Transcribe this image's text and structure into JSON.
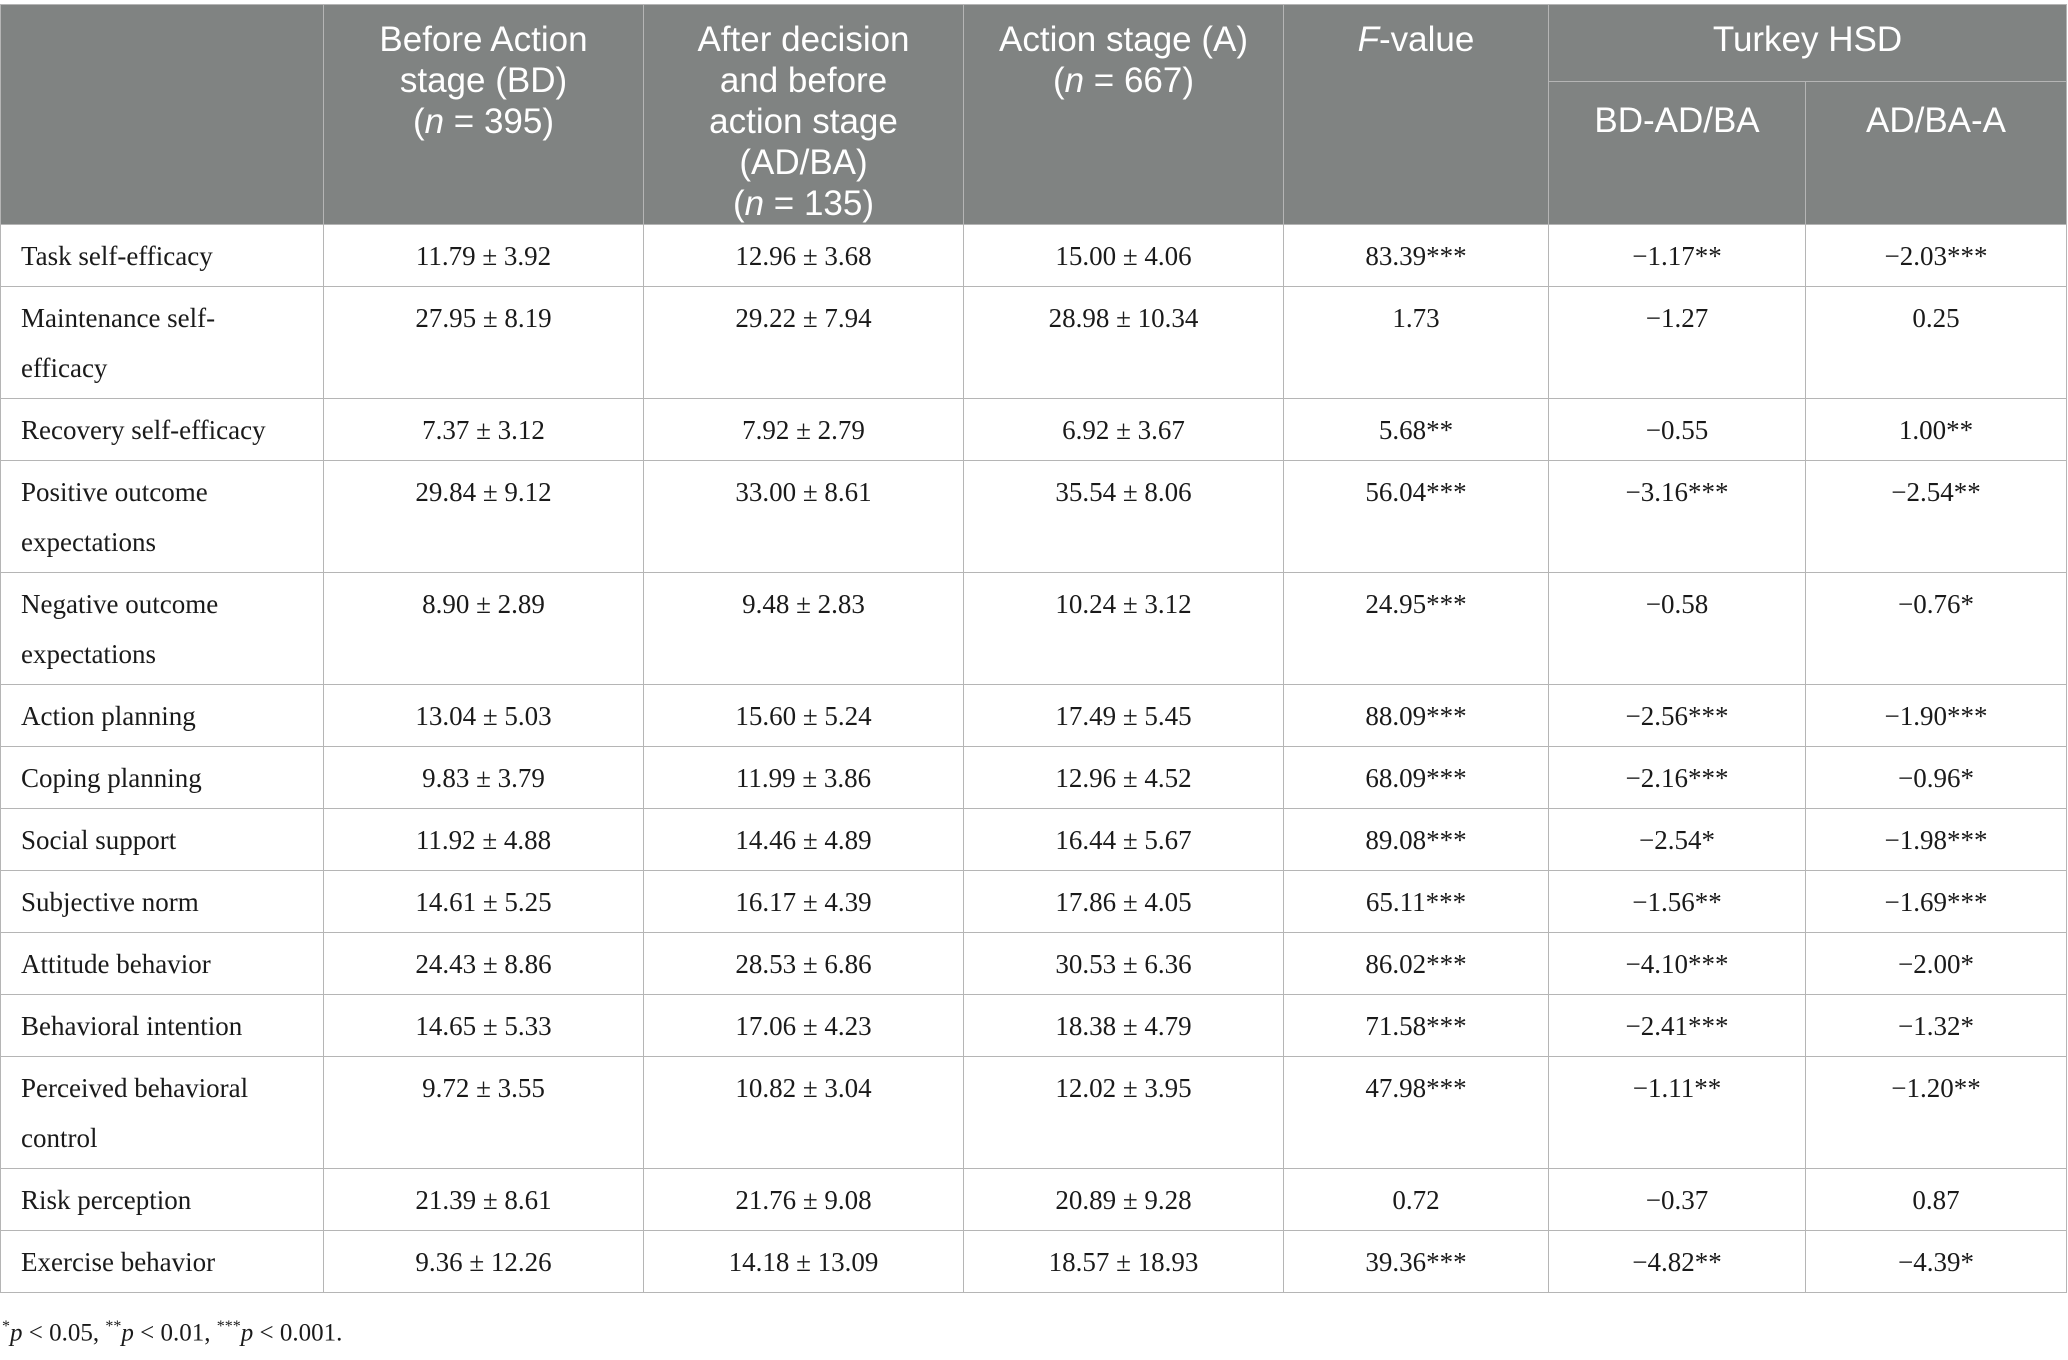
{
  "header": {
    "col_label": "",
    "col1_line1": "Before Action",
    "col1_line2": "stage (BD)",
    "col1_n": "(n = 395)",
    "col2_line1": "After decision",
    "col2_line2": "and before",
    "col2_line3": "action stage",
    "col2_line4": "(AD/BA)",
    "col2_n": "(n = 135)",
    "col3_line1": "Action stage (A)",
    "col3_n": "(n = 667)",
    "col4_f": "F",
    "col4_rest": "-value",
    "group": "Turkey HSD",
    "sub1": "BD-AD/BA",
    "sub2": "AD/BA-A"
  },
  "rows": [
    {
      "label": "Task self-efficacy",
      "label2": "",
      "bd": "11.79 ± 3.92",
      "adba": "12.96 ± 3.68",
      "a": "15.00 ± 4.06",
      "f": "83.39***",
      "hsd1": "−1.17**",
      "hsd2": "−2.03***"
    },
    {
      "label": "Maintenance self-",
      "label2": "efficacy",
      "bd": "27.95 ± 8.19",
      "adba": "29.22 ± 7.94",
      "a": "28.98 ± 10.34",
      "f": "1.73",
      "hsd1": "−1.27",
      "hsd2": "0.25"
    },
    {
      "label": "Recovery self-efficacy",
      "label2": "",
      "bd": "7.37 ± 3.12",
      "adba": "7.92 ± 2.79",
      "a": "6.92 ± 3.67",
      "f": "5.68**",
      "hsd1": "−0.55",
      "hsd2": "1.00**"
    },
    {
      "label": "Positive outcome",
      "label2": "expectations",
      "bd": "29.84 ± 9.12",
      "adba": "33.00 ± 8.61",
      "a": "35.54 ± 8.06",
      "f": "56.04***",
      "hsd1": "−3.16***",
      "hsd2": "−2.54**"
    },
    {
      "label": "Negative outcome",
      "label2": "expectations",
      "bd": "8.90 ± 2.89",
      "adba": "9.48 ± 2.83",
      "a": "10.24 ± 3.12",
      "f": "24.95***",
      "hsd1": "−0.58",
      "hsd2": "−0.76*"
    },
    {
      "label": "Action planning",
      "label2": "",
      "bd": "13.04 ± 5.03",
      "adba": "15.60 ± 5.24",
      "a": "17.49 ± 5.45",
      "f": "88.09***",
      "hsd1": "−2.56***",
      "hsd2": "−1.90***"
    },
    {
      "label": "Coping planning",
      "label2": "",
      "bd": "9.83 ± 3.79",
      "adba": "11.99 ± 3.86",
      "a": "12.96 ± 4.52",
      "f": "68.09***",
      "hsd1": "−2.16***",
      "hsd2": "−0.96*"
    },
    {
      "label": "Social support",
      "label2": "",
      "bd": "11.92 ± 4.88",
      "adba": "14.46 ± 4.89",
      "a": "16.44 ± 5.67",
      "f": "89.08***",
      "hsd1": "−2.54*",
      "hsd2": "−1.98***"
    },
    {
      "label": "Subjective norm",
      "label2": "",
      "bd": "14.61 ± 5.25",
      "adba": "16.17 ± 4.39",
      "a": "17.86 ± 4.05",
      "f": "65.11***",
      "hsd1": "−1.56**",
      "hsd2": "−1.69***"
    },
    {
      "label": "Attitude behavior",
      "label2": "",
      "bd": "24.43 ± 8.86",
      "adba": "28.53 ± 6.86",
      "a": "30.53 ± 6.36",
      "f": "86.02***",
      "hsd1": "−4.10***",
      "hsd2": "−2.00*"
    },
    {
      "label": "Behavioral intention",
      "label2": "",
      "bd": "14.65 ± 5.33",
      "adba": "17.06 ± 4.23",
      "a": "18.38 ± 4.79",
      "f": "71.58***",
      "hsd1": "−2.41***",
      "hsd2": "−1.32*"
    },
    {
      "label": "Perceived behavioral",
      "label2": "control",
      "bd": "9.72 ± 3.55",
      "adba": "10.82 ± 3.04",
      "a": "12.02 ± 3.95",
      "f": "47.98***",
      "hsd1": "−1.11**",
      "hsd2": "−1.20**"
    },
    {
      "label": "Risk perception",
      "label2": "",
      "bd": "21.39 ± 8.61",
      "adba": "21.76 ± 9.08",
      "a": "20.89 ± 9.28",
      "f": "0.72",
      "hsd1": "−0.37",
      "hsd2": "0.87"
    },
    {
      "label": "Exercise behavior",
      "label2": "",
      "bd": "9.36 ± 12.26",
      "adba": "14.18 ± 13.09",
      "a": "18.57 ± 18.93",
      "f": "39.36***",
      "hsd1": "−4.82**",
      "hsd2": "−4.39*"
    }
  ],
  "footnote": "*p < 0.05, **p < 0.01, ***p < 0.001."
}
